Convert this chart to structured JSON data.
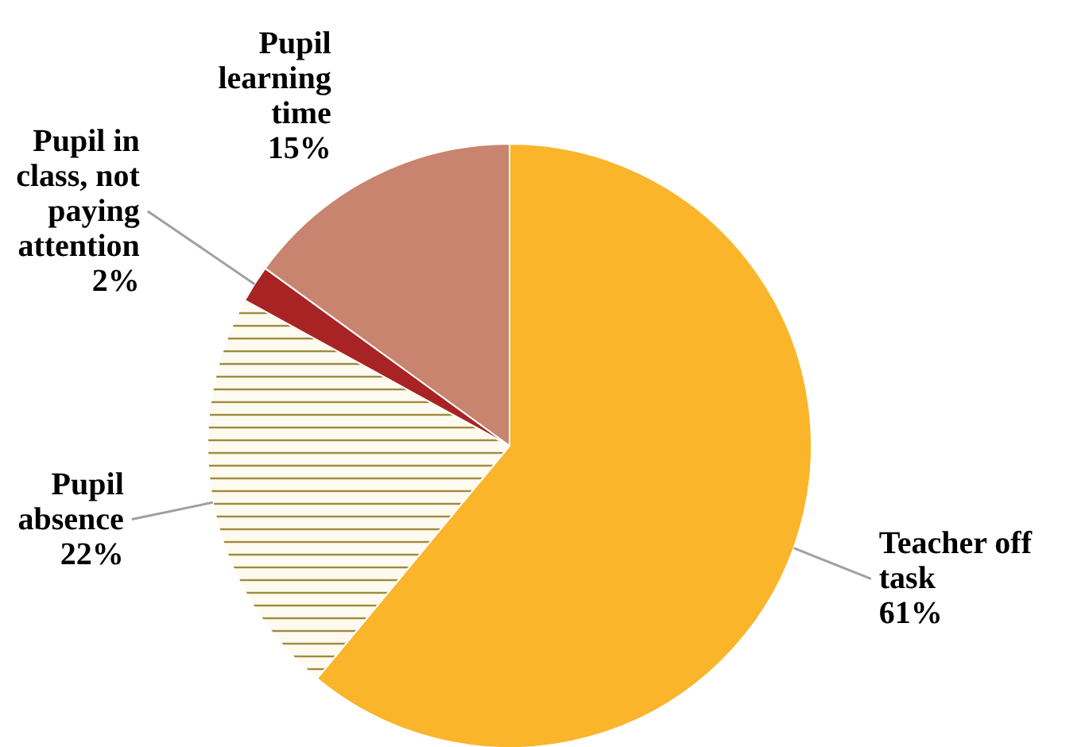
{
  "chart_data": {
    "type": "pie",
    "categories": [
      "Teacher off\ntask",
      "Pupil\nabsence",
      "Pupil in\nclass, not\npaying\nattention",
      "Pupil\nlearning\ntime"
    ],
    "values": [
      61,
      22,
      2,
      15
    ],
    "value_labels": [
      "61%",
      "22%",
      "2%",
      "15%"
    ],
    "colors": [
      "#fbb52b",
      "#fdfaf0",
      "#a82424",
      "#c8846e"
    ]
  }
}
